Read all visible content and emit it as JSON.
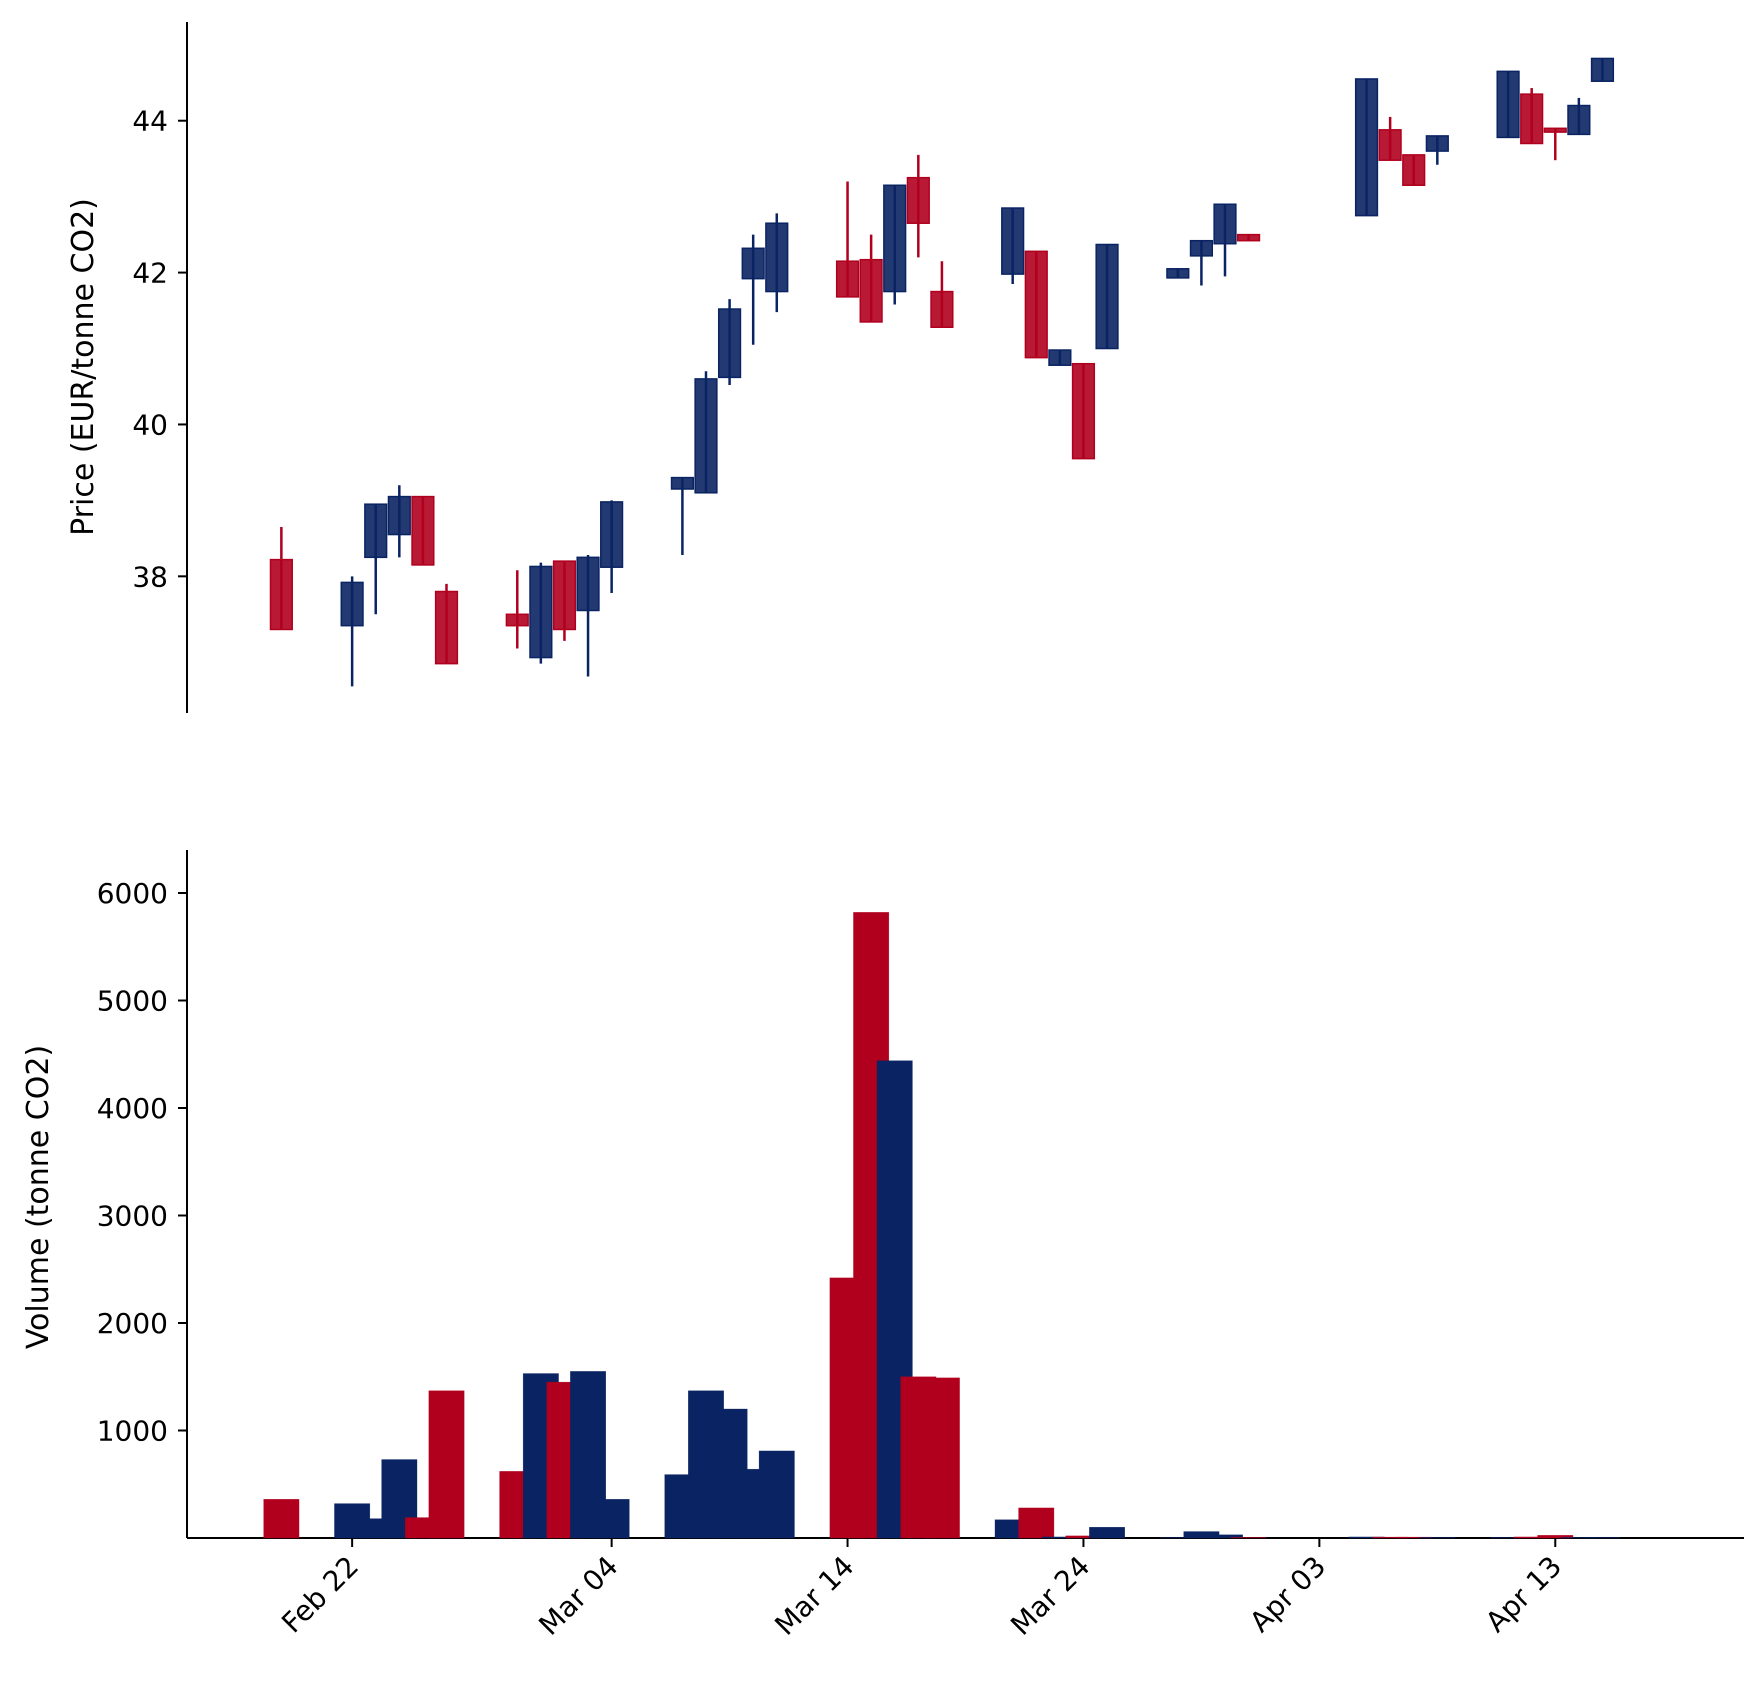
{
  "colors": {
    "up": "#0a2463",
    "down": "#b0001e"
  },
  "chart_data": [
    {
      "type": "candlestick",
      "ylabel": "Price (EUR/tonne CO2)",
      "ylim": [
        36.2,
        45.3
      ],
      "yticks": [
        38,
        40,
        42,
        44
      ],
      "xlim": [
        "2024-02-15",
        "2024-04-21"
      ],
      "xticks": [
        "2024-02-22",
        "2024-03-04",
        "2024-03-14",
        "2024-03-24",
        "2024-04-03",
        "2024-04-13"
      ],
      "xtick_labels": [
        "Feb 22",
        "Mar 04",
        "Mar 14",
        "Mar 24",
        "Apr 03",
        "Apr 13"
      ],
      "candles": [
        {
          "date": "2024-02-19",
          "open": 38.22,
          "high": 38.65,
          "low": 37.3,
          "close": 37.3
        },
        {
          "date": "2024-02-22",
          "open": 37.35,
          "high": 38.0,
          "low": 36.55,
          "close": 37.92
        },
        {
          "date": "2024-02-23",
          "open": 38.25,
          "high": 38.95,
          "low": 37.5,
          "close": 38.95
        },
        {
          "date": "2024-02-24",
          "open": 38.55,
          "high": 39.2,
          "low": 38.25,
          "close": 39.05
        },
        {
          "date": "2024-02-25",
          "open": 39.05,
          "high": 39.05,
          "low": 38.15,
          "close": 38.15
        },
        {
          "date": "2024-02-26",
          "open": 37.8,
          "high": 37.9,
          "low": 36.85,
          "close": 36.85
        },
        {
          "date": "2024-02-29",
          "open": 37.5,
          "high": 38.08,
          "low": 37.05,
          "close": 37.35
        },
        {
          "date": "2024-03-01",
          "open": 36.93,
          "high": 38.18,
          "low": 36.85,
          "close": 38.13
        },
        {
          "date": "2024-03-02",
          "open": 38.2,
          "high": 38.2,
          "low": 37.15,
          "close": 37.3
        },
        {
          "date": "2024-03-03",
          "open": 37.55,
          "high": 38.28,
          "low": 36.68,
          "close": 38.25
        },
        {
          "date": "2024-03-04",
          "open": 38.12,
          "high": 39.0,
          "low": 37.78,
          "close": 38.98
        },
        {
          "date": "2024-03-07",
          "open": 39.15,
          "high": 39.3,
          "low": 38.28,
          "close": 39.3
        },
        {
          "date": "2024-03-08",
          "open": 39.1,
          "high": 40.7,
          "low": 39.1,
          "close": 40.6
        },
        {
          "date": "2024-03-09",
          "open": 40.62,
          "high": 41.65,
          "low": 40.52,
          "close": 41.52
        },
        {
          "date": "2024-03-10",
          "open": 41.92,
          "high": 42.5,
          "low": 41.05,
          "close": 42.32
        },
        {
          "date": "2024-03-11",
          "open": 41.75,
          "high": 42.78,
          "low": 41.48,
          "close": 42.65
        },
        {
          "date": "2024-03-14",
          "open": 42.15,
          "high": 43.2,
          "low": 41.68,
          "close": 41.68
        },
        {
          "date": "2024-03-15",
          "open": 42.17,
          "high": 42.5,
          "low": 41.35,
          "close": 41.35
        },
        {
          "date": "2024-03-16",
          "open": 41.75,
          "high": 43.15,
          "low": 41.58,
          "close": 43.15
        },
        {
          "date": "2024-03-17",
          "open": 43.25,
          "high": 43.55,
          "low": 42.2,
          "close": 42.65
        },
        {
          "date": "2024-03-18",
          "open": 41.75,
          "high": 42.15,
          "low": 41.28,
          "close": 41.28
        },
        {
          "date": "2024-03-21",
          "open": 41.98,
          "high": 42.85,
          "low": 41.85,
          "close": 42.85
        },
        {
          "date": "2024-03-22",
          "open": 42.28,
          "high": 42.28,
          "low": 40.88,
          "close": 40.88
        },
        {
          "date": "2024-03-23",
          "open": 40.78,
          "high": 40.98,
          "low": 40.78,
          "close": 40.98
        },
        {
          "date": "2024-03-24",
          "open": 40.8,
          "high": 40.8,
          "low": 39.55,
          "close": 39.55
        },
        {
          "date": "2024-03-25",
          "open": 41.0,
          "high": 42.37,
          "low": 41.0,
          "close": 42.37
        },
        {
          "date": "2024-03-28",
          "open": 41.93,
          "high": 42.05,
          "low": 41.93,
          "close": 42.05
        },
        {
          "date": "2024-03-29",
          "open": 42.22,
          "high": 42.42,
          "low": 41.83,
          "close": 42.42
        },
        {
          "date": "2024-03-30",
          "open": 42.38,
          "high": 42.9,
          "low": 41.95,
          "close": 42.9
        },
        {
          "date": "2024-03-31",
          "open": 42.5,
          "high": 42.5,
          "low": 42.42,
          "close": 42.42
        },
        {
          "date": "2024-04-05",
          "open": 42.75,
          "high": 44.55,
          "low": 42.75,
          "close": 44.55
        },
        {
          "date": "2024-04-06",
          "open": 43.88,
          "high": 44.05,
          "low": 43.48,
          "close": 43.48
        },
        {
          "date": "2024-04-07",
          "open": 43.55,
          "high": 43.55,
          "low": 43.15,
          "close": 43.15
        },
        {
          "date": "2024-04-08",
          "open": 43.6,
          "high": 43.8,
          "low": 43.42,
          "close": 43.8
        },
        {
          "date": "2024-04-11",
          "open": 43.78,
          "high": 44.65,
          "low": 43.78,
          "close": 44.65
        },
        {
          "date": "2024-04-12",
          "open": 44.35,
          "high": 44.43,
          "low": 43.7,
          "close": 43.7
        },
        {
          "date": "2024-04-13",
          "open": 43.9,
          "high": 43.9,
          "low": 43.48,
          "close": 43.85
        },
        {
          "date": "2024-04-14",
          "open": 43.82,
          "high": 44.3,
          "low": 43.82,
          "close": 44.2
        },
        {
          "date": "2024-04-15",
          "open": 44.52,
          "high": 44.82,
          "low": 44.52,
          "close": 44.82
        }
      ]
    },
    {
      "type": "bar",
      "ylabel": "Volume (tonne CO2)",
      "ylim": [
        0,
        6400
      ],
      "yticks": [
        1000,
        2000,
        3000,
        4000,
        5000,
        6000
      ],
      "xlim": [
        "2024-02-15",
        "2024-04-21"
      ],
      "xticks": [
        "2024-02-22",
        "2024-03-04",
        "2024-03-14",
        "2024-03-24",
        "2024-04-03",
        "2024-04-13"
      ],
      "xtick_labels": [
        "Feb 22",
        "Mar 04",
        "Mar 14",
        "Mar 24",
        "Apr 03",
        "Apr 13"
      ],
      "bars": [
        {
          "date": "2024-02-19",
          "value": 360,
          "direction": "down"
        },
        {
          "date": "2024-02-22",
          "value": 320,
          "direction": "up"
        },
        {
          "date": "2024-02-23",
          "value": 180,
          "direction": "up"
        },
        {
          "date": "2024-02-24",
          "value": 730,
          "direction": "up"
        },
        {
          "date": "2024-02-25",
          "value": 190,
          "direction": "down"
        },
        {
          "date": "2024-02-26",
          "value": 1370,
          "direction": "down"
        },
        {
          "date": "2024-02-29",
          "value": 620,
          "direction": "down"
        },
        {
          "date": "2024-03-01",
          "value": 1530,
          "direction": "up"
        },
        {
          "date": "2024-03-02",
          "value": 1450,
          "direction": "down"
        },
        {
          "date": "2024-03-03",
          "value": 1550,
          "direction": "up"
        },
        {
          "date": "2024-03-04",
          "value": 360,
          "direction": "up"
        },
        {
          "date": "2024-03-07",
          "value": 590,
          "direction": "up"
        },
        {
          "date": "2024-03-08",
          "value": 1370,
          "direction": "up"
        },
        {
          "date": "2024-03-09",
          "value": 1200,
          "direction": "up"
        },
        {
          "date": "2024-03-10",
          "value": 640,
          "direction": "up"
        },
        {
          "date": "2024-03-11",
          "value": 810,
          "direction": "up"
        },
        {
          "date": "2024-03-14",
          "value": 2420,
          "direction": "down"
        },
        {
          "date": "2024-03-15",
          "value": 5820,
          "direction": "down"
        },
        {
          "date": "2024-03-16",
          "value": 4440,
          "direction": "up"
        },
        {
          "date": "2024-03-17",
          "value": 1500,
          "direction": "down"
        },
        {
          "date": "2024-03-18",
          "value": 1490,
          "direction": "down"
        },
        {
          "date": "2024-03-21",
          "value": 170,
          "direction": "up"
        },
        {
          "date": "2024-03-22",
          "value": 280,
          "direction": "down"
        },
        {
          "date": "2024-03-23",
          "value": 10,
          "direction": "up"
        },
        {
          "date": "2024-03-24",
          "value": 20,
          "direction": "down"
        },
        {
          "date": "2024-03-25",
          "value": 100,
          "direction": "up"
        },
        {
          "date": "2024-03-28",
          "value": 5,
          "direction": "up"
        },
        {
          "date": "2024-03-29",
          "value": 60,
          "direction": "up"
        },
        {
          "date": "2024-03-30",
          "value": 30,
          "direction": "up"
        },
        {
          "date": "2024-03-31",
          "value": 5,
          "direction": "down"
        },
        {
          "date": "2024-04-05",
          "value": 10,
          "direction": "up"
        },
        {
          "date": "2024-04-06",
          "value": 8,
          "direction": "down"
        },
        {
          "date": "2024-04-07",
          "value": 8,
          "direction": "down"
        },
        {
          "date": "2024-04-08",
          "value": 5,
          "direction": "up"
        },
        {
          "date": "2024-04-11",
          "value": 5,
          "direction": "up"
        },
        {
          "date": "2024-04-12",
          "value": 10,
          "direction": "down"
        },
        {
          "date": "2024-04-13",
          "value": 25,
          "direction": "down"
        },
        {
          "date": "2024-04-14",
          "value": 5,
          "direction": "up"
        },
        {
          "date": "2024-04-15",
          "value": 5,
          "direction": "up"
        }
      ]
    }
  ]
}
